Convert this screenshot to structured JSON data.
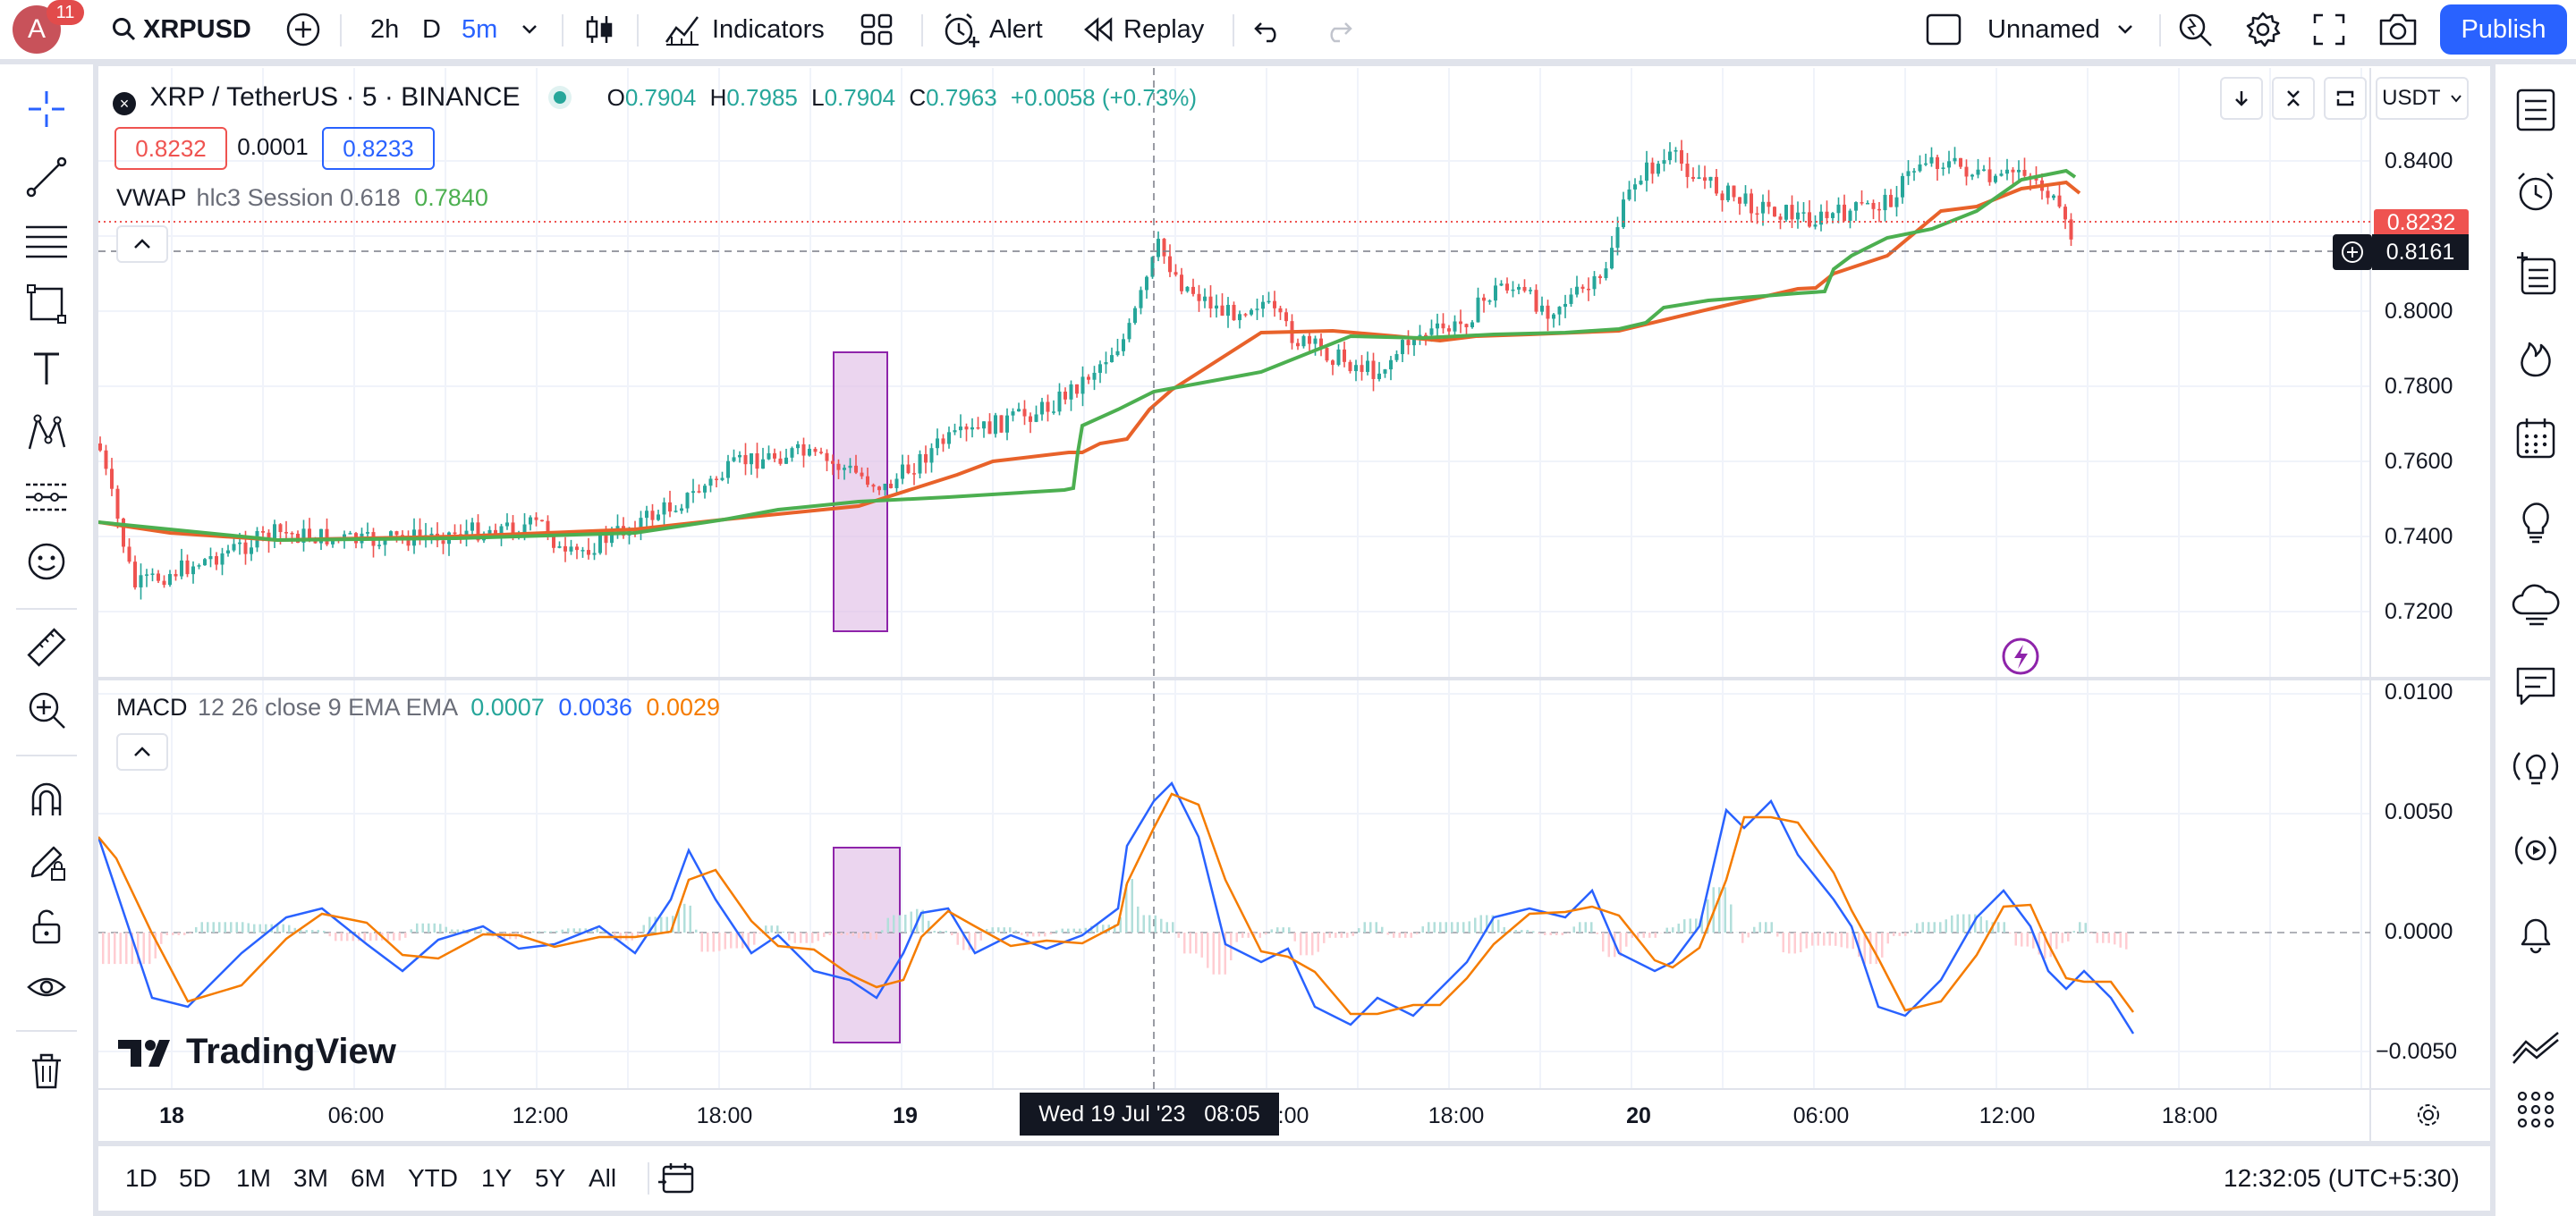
{
  "header": {
    "avatar_letter": "A",
    "notification_count": "11",
    "symbol": "XRPUSD",
    "intervals": [
      "2h",
      "D",
      "5m"
    ],
    "indicators_label": "Indicators",
    "alert_label": "Alert",
    "replay_label": "Replay",
    "layout_name": "Unnamed",
    "publish_label": "Publish"
  },
  "legend": {
    "title": "XRP / TetherUS · 5 · BINANCE",
    "o_label": "O",
    "o_val": "0.7904",
    "h_label": "H",
    "h_val": "0.7985",
    "l_label": "L",
    "l_val": "0.7904",
    "c_label": "C",
    "c_val": "0.7963",
    "change": "+0.0058 (+0.73%)",
    "sell_price": "0.8232",
    "spread": "0.0001",
    "buy_price": "0.8233",
    "vwap_name": "VWAP",
    "vwap_params": "hlc3 Session",
    "vwap_v1": "0.618",
    "vwap_v2": "0.7840",
    "macd_name": "MACD",
    "macd_params": "12 26 close 9 EMA EMA",
    "macd_v1": "0.0007",
    "macd_v2": "0.0036",
    "macd_v3": "0.0029"
  },
  "price_axis": {
    "currency": "USDT",
    "ticks": [
      "0.8400",
      "0.8000",
      "0.7800",
      "0.7600",
      "0.7400",
      "0.7200"
    ],
    "last_price": "0.8232",
    "crosshair_price": "0.8161"
  },
  "macd_axis": {
    "ticks": [
      "0.0100",
      "0.0050",
      "0.0000",
      "−0.0050"
    ]
  },
  "time_axis": {
    "labels": [
      "18",
      "06:00",
      "12:00",
      "18:00",
      "19",
      "",
      "18:00",
      "20",
      "06:00",
      "12:00",
      "18:00"
    ],
    "crosshair_time": "Wed 19 Jul '23   08:05",
    "behind_crosshair": ":00"
  },
  "watermark": "TradingView",
  "bottom": {
    "ranges": [
      "1D",
      "5D",
      "1M",
      "3M",
      "6M",
      "YTD",
      "1Y",
      "5Y",
      "All"
    ],
    "clock": "12:32:05 (UTC+5:30)"
  },
  "colors": {
    "up": "#26a69a",
    "down": "#ef5350",
    "vwap_orange": "#e8622a",
    "vwap_green": "#4caf50",
    "macd_blue": "#2962ff",
    "signal_orange": "#f57c00",
    "accent": "#2962ff",
    "highlight_box": "#8e24aa"
  }
}
